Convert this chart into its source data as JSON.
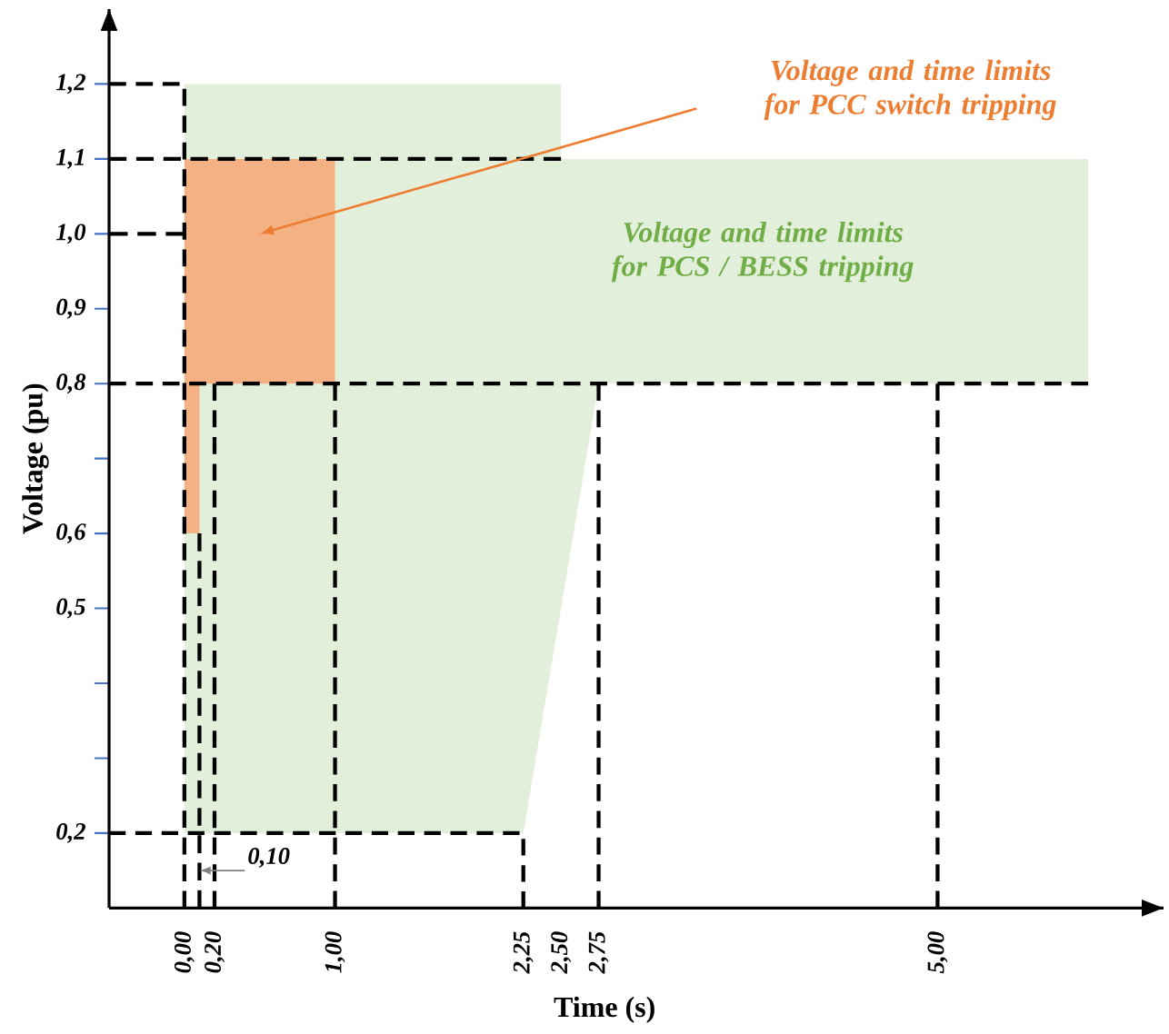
{
  "chart_data": {
    "type": "area",
    "xlabel": "Time (s)",
    "ylabel": "Voltage (pu)",
    "xlim": [
      -0.5,
      6.5
    ],
    "ylim": [
      0.1,
      1.3
    ],
    "xticks": [
      {
        "value": 0,
        "label": "0,00"
      },
      {
        "value": 0.2,
        "label": "0,20"
      },
      {
        "value": 1,
        "label": "1,00"
      },
      {
        "value": 2.25,
        "label": "2,25"
      },
      {
        "value": 2.5,
        "label": "2,50"
      },
      {
        "value": 2.75,
        "label": "2,75"
      },
      {
        "value": 5,
        "label": "5,00"
      }
    ],
    "yticks": [
      {
        "value": 0.2,
        "label": "0,2"
      },
      {
        "value": 0.3,
        "label": null
      },
      {
        "value": 0.4,
        "label": null
      },
      {
        "value": 0.5,
        "label": "0,5"
      },
      {
        "value": 0.6,
        "label": "0,6"
      },
      {
        "value": 0.7,
        "label": null
      },
      {
        "value": 0.8,
        "label": "0,8"
      },
      {
        "value": 0.9,
        "label": "0,9"
      },
      {
        "value": 1.0,
        "label": "1,0"
      },
      {
        "value": 1.1,
        "label": "1,1"
      },
      {
        "value": 1.2,
        "label": "1,2"
      }
    ],
    "legend": false,
    "marker": "none",
    "series": [
      {
        "name": "Voltage and time limits for PCS / BESS tripping",
        "color": "#e2efda",
        "x": [
          0,
          2.5,
          2.5,
          6,
          6,
          2.75,
          2.25,
          0
        ],
        "values": [
          1.2,
          1.2,
          1.1,
          1.1,
          0.8,
          0.8,
          0.2,
          0.2
        ]
      },
      {
        "name": "Voltage and time limits for PCC switch tripping",
        "color": "#f4b183",
        "x": [
          0,
          1,
          1,
          0.1,
          0.1,
          0
        ],
        "values": [
          1.1,
          1.1,
          0.8,
          0.8,
          0.6,
          0.6
        ]
      },
      {
        "type": "line",
        "line_style": "dashed",
        "color": "#000000",
        "x": [
          -0.5,
          0,
          0
        ],
        "values": [
          1.2,
          1.2,
          0.1
        ]
      },
      {
        "type": "line",
        "line_style": "dashed",
        "color": "#000000",
        "x": [
          -0.5,
          2.5
        ],
        "values": [
          1.1,
          1.1
        ]
      },
      {
        "type": "line",
        "line_style": "dashed",
        "color": "#000000",
        "x": [
          -0.5,
          0
        ],
        "values": [
          1.0,
          1.0
        ]
      },
      {
        "type": "line",
        "line_style": "dashed",
        "color": "#000000",
        "x": [
          -0.5,
          6
        ],
        "values": [
          0.8,
          0.8
        ]
      },
      {
        "type": "line",
        "line_style": "dashed",
        "color": "#000000",
        "x": [
          -0.5,
          2.25,
          2.25
        ],
        "values": [
          0.2,
          0.2,
          0.1
        ]
      },
      {
        "type": "line",
        "line_style": "dashed",
        "color": "#000000",
        "x": [
          0.1,
          0.1
        ],
        "values": [
          0.6,
          0.1
        ]
      },
      {
        "type": "line",
        "line_style": "dashed",
        "color": "#000000",
        "x": [
          0.2,
          0.2
        ],
        "values": [
          0.8,
          0.1
        ]
      },
      {
        "type": "line",
        "line_style": "dashed",
        "color": "#000000",
        "x": [
          1,
          1
        ],
        "values": [
          0.8,
          0.1
        ]
      },
      {
        "type": "line",
        "line_style": "dashed",
        "color": "#000000",
        "x": [
          2.75,
          2.75
        ],
        "values": [
          0.8,
          0.1
        ]
      },
      {
        "type": "line",
        "line_style": "dashed",
        "color": "#000000",
        "x": [
          5,
          5
        ],
        "values": [
          0.8,
          0.1
        ]
      }
    ],
    "annotations": [
      {
        "text": "0,10",
        "x": 0.1,
        "y": 0.15
      }
    ]
  }
}
